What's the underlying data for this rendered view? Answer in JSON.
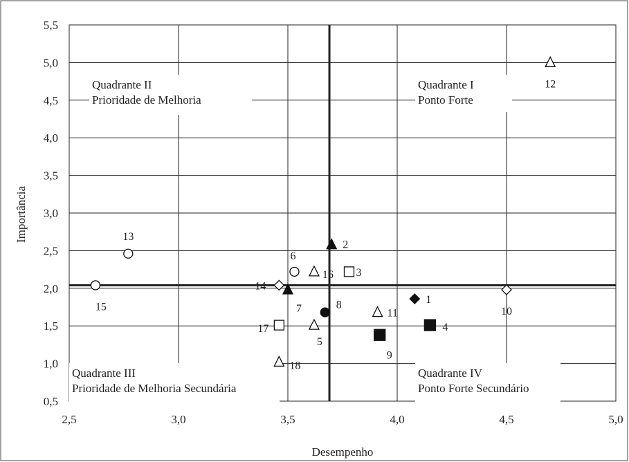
{
  "colors": {
    "ink": "#222222",
    "grid": "#222222",
    "frame": "#444444",
    "background": "#ffffff"
  },
  "chart_data": {
    "type": "scatter",
    "title": "",
    "xlabel": "Desempenho",
    "ylabel": "Importância",
    "xlim": [
      2.5,
      5.0
    ],
    "ylim": [
      0.5,
      5.5
    ],
    "xticks": [
      "2,5",
      "3,0",
      "3,5",
      "4,0",
      "4,5",
      "5,0"
    ],
    "yticks": [
      "0,5",
      "1,0",
      "1,5",
      "2,0",
      "2,5",
      "3,0",
      "3,5",
      "4,0",
      "4,5",
      "5,0",
      "5,5"
    ],
    "grid": true,
    "reference_lines": {
      "x": 3.69,
      "y": 2.04
    },
    "quadrants": [
      {
        "line1": "Quadrante I",
        "line2": "Ponto Forte"
      },
      {
        "line1": "Quadrante II",
        "line2": "Prioridade de Melhoria"
      },
      {
        "line1": "Quadrante III",
        "line2": "Prioridade de Melhoria Secundária"
      },
      {
        "line1": "Quadrante IV",
        "line2": "Ponto Forte Secundário"
      }
    ],
    "points": [
      {
        "label": "1",
        "x": 4.08,
        "y": 1.86,
        "marker": "diamond-filled"
      },
      {
        "label": "2",
        "x": 3.7,
        "y": 2.58,
        "marker": "triangle-filled"
      },
      {
        "label": "3",
        "x": 3.78,
        "y": 2.22,
        "marker": "square-open"
      },
      {
        "label": "4",
        "x": 4.15,
        "y": 1.51,
        "marker": "square-filled"
      },
      {
        "label": "5",
        "x": 3.62,
        "y": 1.51,
        "marker": "triangle-open"
      },
      {
        "label": "6",
        "x": 3.53,
        "y": 2.22,
        "marker": "circle-open"
      },
      {
        "label": "7",
        "x": 3.5,
        "y": 1.98,
        "marker": "triangle-filled"
      },
      {
        "label": "8",
        "x": 3.67,
        "y": 1.68,
        "marker": "circle-filled"
      },
      {
        "label": "9",
        "x": 3.92,
        "y": 1.38,
        "marker": "square-filled"
      },
      {
        "label": "10",
        "x": 4.5,
        "y": 1.98,
        "marker": "diamond-open"
      },
      {
        "label": "11",
        "x": 3.91,
        "y": 1.68,
        "marker": "triangle-open"
      },
      {
        "label": "12",
        "x": 4.7,
        "y": 5.0,
        "marker": "triangle-open"
      },
      {
        "label": "13",
        "x": 2.77,
        "y": 2.46,
        "marker": "circle-open"
      },
      {
        "label": "14",
        "x": 3.46,
        "y": 2.04,
        "marker": "diamond-open"
      },
      {
        "label": "15",
        "x": 2.62,
        "y": 2.04,
        "marker": "circle-open"
      },
      {
        "label": "16",
        "x": 3.62,
        "y": 2.22,
        "marker": "triangle-open"
      },
      {
        "label": "17",
        "x": 3.46,
        "y": 1.51,
        "marker": "square-open"
      },
      {
        "label": "18",
        "x": 3.46,
        "y": 1.02,
        "marker": "triangle-open"
      }
    ]
  }
}
